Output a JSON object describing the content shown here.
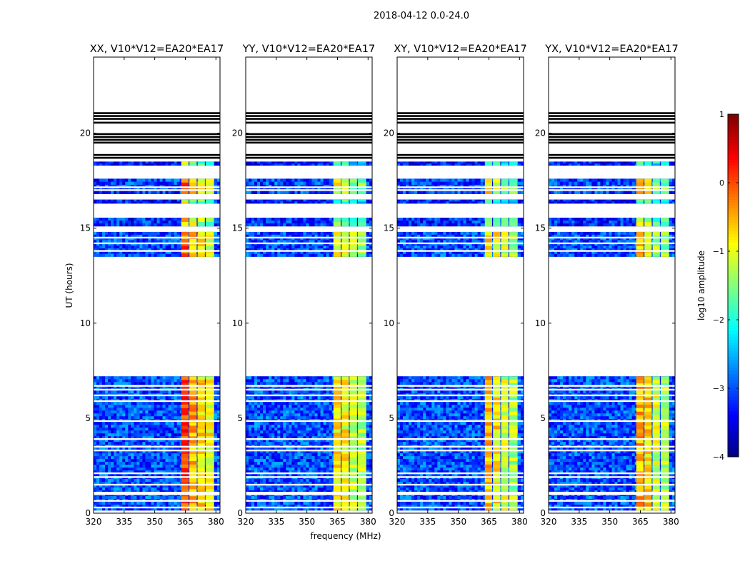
{
  "chart_data": {
    "type": "heatmap",
    "suptitle": "2018-04-12 0.0-24.0",
    "xlabel": "frequency (MHz)",
    "ylabel": "UT (hours)",
    "xlim": [
      320,
      382
    ],
    "ylim": [
      0,
      24
    ],
    "xticks": [
      320,
      335,
      350,
      365,
      380
    ],
    "yticks": [
      0,
      5,
      10,
      15,
      20
    ],
    "panels": [
      {
        "title": "XX, V10*V12=EA20*EA17",
        "product": "XX",
        "band_levels": [
          0.05,
          -0.5,
          -0.7,
          -0.9
        ],
        "low_freq_level": -3.0
      },
      {
        "title": "YY, V10*V12=EA20*EA17",
        "product": "YY",
        "band_levels": [
          -0.8,
          -0.9,
          -1.2,
          -1.3
        ],
        "low_freq_level": -3.0
      },
      {
        "title": "XY, V10*V12=EA20*EA17",
        "product": "XY",
        "band_levels": [
          -0.6,
          -0.8,
          -1.1,
          -1.3
        ],
        "low_freq_level": -3.0
      },
      {
        "title": "YX, V10*V12=EA20*EA17",
        "product": "YX",
        "band_levels": [
          -0.5,
          -0.7,
          -1.1,
          -1.3
        ],
        "low_freq_level": -3.0
      }
    ],
    "freq_bands_mhz": [
      [
        363,
        367
      ],
      [
        367,
        371
      ],
      [
        371,
        375
      ],
      [
        375,
        379.5
      ]
    ],
    "data_blocks_ut": [
      {
        "start": 0.15,
        "end": 7.2,
        "level_offset": 0.0
      },
      {
        "start": 13.5,
        "end": 14.8,
        "level_offset": -0.1
      },
      {
        "start": 15.1,
        "end": 15.55,
        "level_offset": -0.6
      },
      {
        "start": 16.3,
        "end": 16.5,
        "level_offset": -1.0
      },
      {
        "start": 16.8,
        "end": 17.6,
        "level_offset": -0.2
      },
      {
        "start": 18.3,
        "end": 18.5,
        "level_offset": -1.1
      }
    ],
    "flagged_rows_ut": [
      0.3,
      0.65,
      1.0,
      1.08,
      1.5,
      1.9,
      2.1,
      3.3,
      3.5,
      3.9,
      4.85,
      5.9,
      6.2,
      6.5,
      6.7,
      13.8,
      14.2,
      14.5,
      17.0,
      17.15
    ],
    "empty_lines_ut": [
      18.7,
      18.85,
      19.5,
      19.65,
      19.8,
      19.95,
      20.55,
      20.75,
      20.9,
      21.05
    ],
    "colorbar": {
      "label": "log10 amplitude",
      "min": -4,
      "max": 1,
      "ticks": [
        -4,
        -3,
        -2,
        -1,
        0,
        1
      ],
      "colormap": "jet"
    }
  }
}
